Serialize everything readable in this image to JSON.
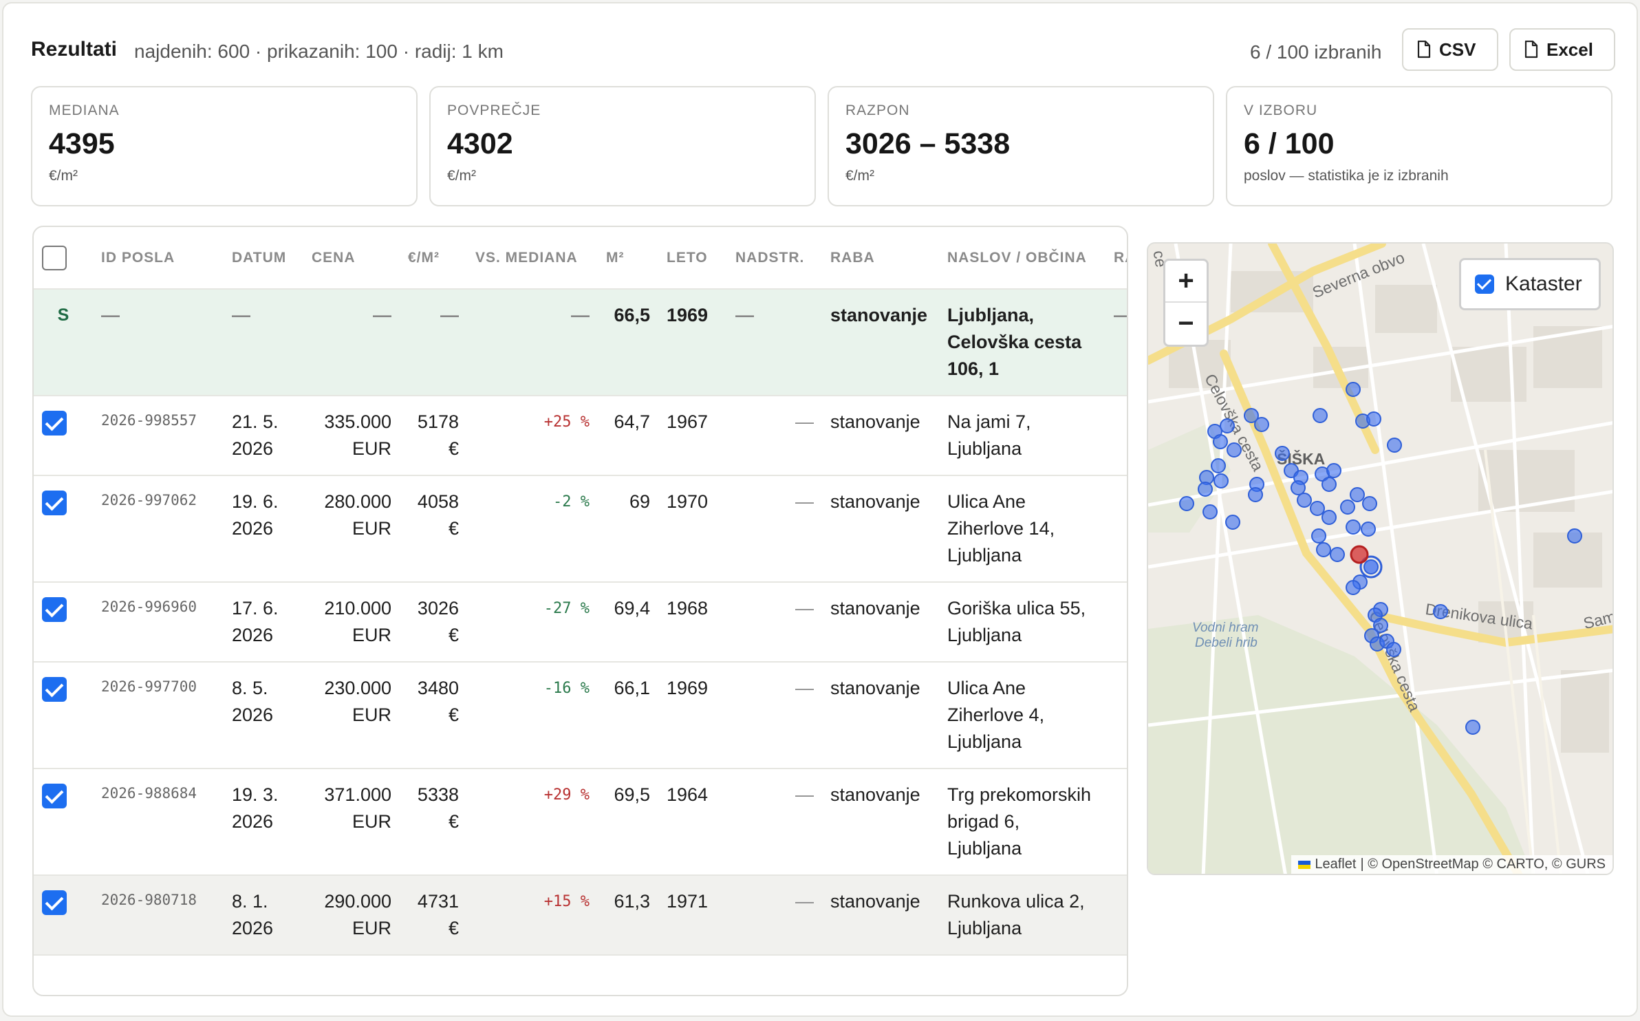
{
  "header": {
    "title": "Rezultati",
    "meta": "najdenih: 600 · prikazanih: 100 · radij: 1 km",
    "selection_count": "6 / 100 izbranih",
    "csv_label": "CSV",
    "excel_label": "Excel"
  },
  "stats": [
    {
      "label": "MEDIANA",
      "value": "4395",
      "unit": "€/m²"
    },
    {
      "label": "POVPREČJE",
      "value": "4302",
      "unit": "€/m²"
    },
    {
      "label": "RAZPON",
      "value": "3026 – 5338",
      "unit": "€/m²"
    },
    {
      "label": "V IZBORU",
      "value": "6 / 100",
      "unit": "poslov — statistika je iz izbranih"
    }
  ],
  "table": {
    "columns": [
      "ID POSLA",
      "DATUM",
      "CENA",
      "€/M²",
      "VS. MEDIANA",
      "M²",
      "LETO",
      "NADSTR.",
      "RABA",
      "NASLOV / OBČINA",
      "RA"
    ],
    "subject": {
      "mark": "S",
      "id": "—",
      "date": "—",
      "price": "—",
      "ppm": "—",
      "vs": "—",
      "m2": "66,5",
      "year": "1969",
      "floor": "—",
      "use": "stanovanje",
      "address": "Ljubljana, Celovška cesta 106, 1",
      "extra": "—"
    },
    "rows": [
      {
        "id": "2026-998557",
        "date": "21. 5. 2026",
        "price": "335.000 EUR",
        "ppm": "5178 €",
        "vs": "+25 %",
        "m2": "64,7",
        "year": "1967",
        "floor": "—",
        "use": "stanovanje",
        "address": "Na jami 7, Ljubljana",
        "sign": "pos"
      },
      {
        "id": "2026-997062",
        "date": "19. 6. 2026",
        "price": "280.000 EUR",
        "ppm": "4058 €",
        "vs": "-2 %",
        "m2": "69",
        "year": "1970",
        "floor": "—",
        "use": "stanovanje",
        "address": "Ulica Ane Ziherlove 14, Ljubljana",
        "sign": "neg"
      },
      {
        "id": "2026-996960",
        "date": "17. 6. 2026",
        "price": "210.000 EUR",
        "ppm": "3026 €",
        "vs": "-27 %",
        "m2": "69,4",
        "year": "1968",
        "floor": "—",
        "use": "stanovanje",
        "address": "Goriška ulica 55, Ljubljana",
        "sign": "neg"
      },
      {
        "id": "2026-997700",
        "date": "8. 5. 2026",
        "price": "230.000 EUR",
        "ppm": "3480 €",
        "vs": "-16 %",
        "m2": "66,1",
        "year": "1969",
        "floor": "—",
        "use": "stanovanje",
        "address": "Ulica Ane Ziherlove 4, Ljubljana",
        "sign": "neg"
      },
      {
        "id": "2026-988684",
        "date": "19. 3. 2026",
        "price": "371.000 EUR",
        "ppm": "5338 €",
        "vs": "+29 %",
        "m2": "69,5",
        "year": "1964",
        "floor": "—",
        "use": "stanovanje",
        "address": "Trg prekomorskih brigad 6, Ljubljana",
        "sign": "pos"
      },
      {
        "id": "2026-980718",
        "date": "8. 1. 2026",
        "price": "290.000 EUR",
        "ppm": "4731 €",
        "vs": "+15 %",
        "m2": "61,3",
        "year": "1971",
        "floor": "—",
        "use": "stanovanje",
        "address": "Runkova ulica 2, Ljubljana",
        "sign": "pos"
      }
    ]
  },
  "map": {
    "zoom_in": "+",
    "zoom_out": "−",
    "layer_label": "Kataster",
    "attribution_leaflet": "Leaflet",
    "attribution_rest": "| © OpenStreetMap © CARTO, © GURS",
    "labels": {
      "district": "ŠIŠKA",
      "celovska_n": "Celovška cesta",
      "celovska_s": "Celovška cesta",
      "severna": "Severna obvo",
      "drenikova": "Drenikova ulica",
      "sam": "Sam",
      "ce": "ce",
      "water_1": "Vodni hram",
      "water_2": "Debeli hrib"
    },
    "colors": {
      "marker": "#3b6ef0",
      "subject": "#d33030",
      "road": "#f5de8a",
      "land": "#efece6",
      "green": "#e1e6d2"
    }
  }
}
